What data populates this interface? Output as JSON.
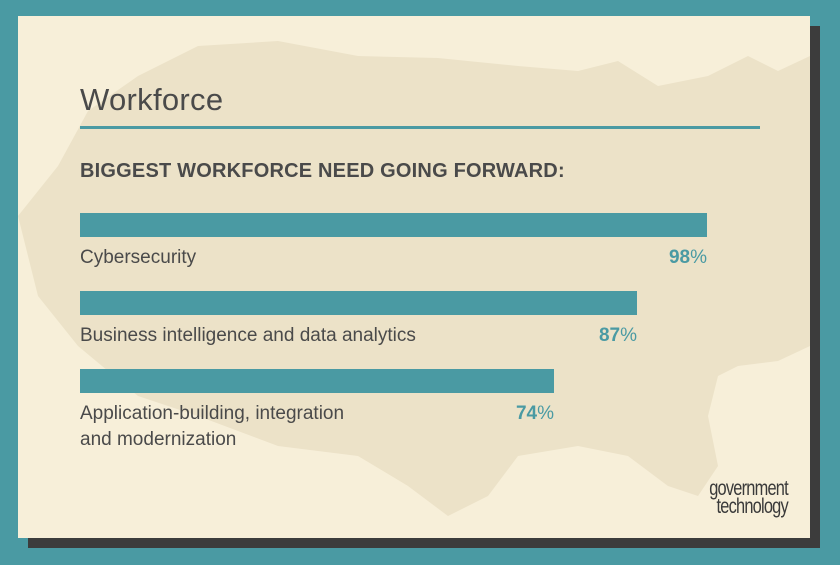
{
  "title": "Workforce",
  "chart_data": {
    "type": "bar",
    "orientation": "horizontal",
    "title": "BIGGEST WORKFORCE NEED GOING FORWARD:",
    "categories": [
      "Cybersecurity",
      "Business intelligence and data analytics",
      "Application-building, integration\nand modernization"
    ],
    "values": [
      98,
      87,
      74
    ],
    "value_labels": [
      "98",
      "87",
      "74"
    ],
    "unit": "%",
    "xlim": [
      0,
      100
    ],
    "xlabel": "",
    "ylabel": "",
    "grid": false,
    "bar_color": "#4a9aa3",
    "value_color": "#4a9aa3"
  },
  "logo": {
    "line1": "government",
    "line2": "technology"
  },
  "colors": {
    "background": "#4a9aa3",
    "card": "#f7efd9",
    "map": "#ece2c8",
    "text": "#4a4a4a"
  }
}
